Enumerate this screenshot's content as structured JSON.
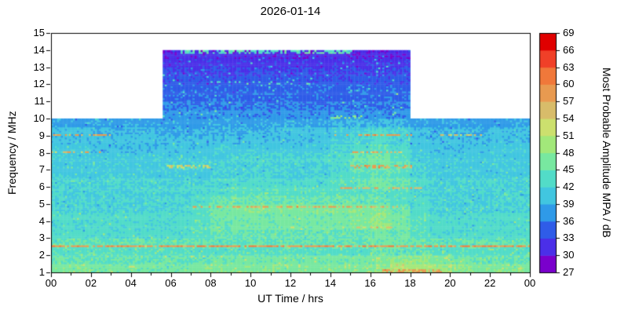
{
  "chart_data": {
    "type": "heatmap",
    "title": "2026-01-14",
    "xlabel": "UT Time / hrs",
    "ylabel": "Frequency / MHz",
    "colorbar_label": "Most Probable Amplitude MPA / dB",
    "x_range": [
      0,
      24
    ],
    "y_range": [
      1,
      15
    ],
    "x_tick_positions": [
      0,
      2,
      4,
      6,
      8,
      10,
      12,
      14,
      16,
      18,
      20,
      22,
      24
    ],
    "x_tick_labels": [
      "00",
      "02",
      "04",
      "06",
      "08",
      "10",
      "12",
      "14",
      "16",
      "18",
      "20",
      "22",
      "00"
    ],
    "y_tick_positions": [
      1,
      2,
      3,
      4,
      5,
      6,
      7,
      8,
      9,
      10,
      11,
      12,
      13,
      14,
      15
    ],
    "y_tick_labels": [
      "1",
      "2",
      "3",
      "4",
      "5",
      "6",
      "7",
      "8",
      "9",
      "10",
      "11",
      "12",
      "13",
      "14",
      "15"
    ],
    "colorbar_range": [
      27,
      69
    ],
    "colorbar_ticks": [
      27,
      30,
      33,
      36,
      39,
      42,
      45,
      48,
      51,
      54,
      57,
      60,
      63,
      66,
      69
    ],
    "colormap_bin_db": 3,
    "colormap": [
      "#7a00cc",
      "#4b2fe8",
      "#2f5ce8",
      "#2f9ae8",
      "#41c6e0",
      "#52dcc8",
      "#78e8a0",
      "#a2e87a",
      "#cce06e",
      "#d8bc6a",
      "#e89a50",
      "#f0783a",
      "#f04028",
      "#e00000"
    ],
    "no_data_color": "#ffffff",
    "data_coverage": {
      "full_day_max_freq": 10,
      "daytime_block": {
        "t_start": 5.6,
        "t_end": 18.0,
        "f_min": 10,
        "f_max": 14
      }
    },
    "base_grid": {
      "unit": "dB",
      "freq_start": 1.0,
      "freq_step": 0.5,
      "time_step": 1,
      "rows": [
        [
          47,
          47,
          46,
          46,
          46,
          46,
          46,
          47,
          47,
          47,
          47,
          47,
          47,
          47,
          47,
          47,
          48,
          50,
          50,
          49,
          48,
          47,
          47,
          47
        ],
        [
          45,
          45,
          45,
          45,
          45,
          45,
          45,
          45,
          46,
          46,
          46,
          46,
          46,
          46,
          46,
          46,
          47,
          48,
          48,
          47,
          46,
          45,
          45,
          45
        ],
        [
          44,
          44,
          44,
          44,
          44,
          44,
          44,
          44,
          44,
          44,
          44,
          44,
          44,
          44,
          44,
          44,
          45,
          45,
          45,
          44,
          44,
          44,
          44,
          44
        ],
        [
          45,
          45,
          45,
          45,
          45,
          45,
          45,
          45,
          45,
          45,
          45,
          45,
          45,
          45,
          45,
          45,
          46,
          46,
          45,
          45,
          45,
          45,
          45,
          45
        ],
        [
          43,
          43,
          43,
          43,
          43,
          43,
          43,
          44,
          45,
          45,
          45,
          45,
          45,
          45,
          45,
          45,
          46,
          45,
          44,
          43,
          43,
          43,
          43,
          43
        ],
        [
          43,
          43,
          43,
          43,
          43,
          43,
          43,
          44,
          45,
          46,
          46,
          46,
          46,
          46,
          46,
          47,
          48,
          46,
          44,
          43,
          43,
          43,
          43,
          43
        ],
        [
          43,
          43,
          43,
          43,
          43,
          43,
          43,
          44,
          46,
          46,
          46,
          46,
          46,
          46,
          46,
          47,
          48,
          46,
          44,
          43,
          43,
          43,
          43,
          43
        ],
        [
          42,
          42,
          42,
          42,
          42,
          42,
          42,
          44,
          46,
          47,
          47,
          47,
          47,
          47,
          47,
          47,
          47,
          45,
          43,
          42,
          42,
          42,
          42,
          42
        ],
        [
          42,
          42,
          42,
          42,
          42,
          42,
          42,
          43,
          45,
          45,
          45,
          45,
          45,
          45,
          45,
          45,
          45,
          44,
          43,
          42,
          42,
          42,
          42,
          42
        ],
        [
          42,
          42,
          42,
          42,
          42,
          42,
          42,
          42,
          43,
          44,
          44,
          44,
          44,
          44,
          44,
          44,
          45,
          44,
          42,
          42,
          42,
          42,
          42,
          42
        ],
        [
          42,
          42,
          42,
          42,
          42,
          42,
          42,
          42,
          43,
          43,
          43,
          43,
          43,
          43,
          44,
          45,
          46,
          45,
          43,
          42,
          42,
          42,
          42,
          42
        ],
        [
          41,
          41,
          41,
          41,
          41,
          41,
          41,
          41,
          42,
          42,
          42,
          42,
          42,
          42,
          43,
          44,
          45,
          44,
          42,
          41,
          41,
          41,
          41,
          41
        ],
        [
          41,
          41,
          41,
          41,
          41,
          41,
          42,
          42,
          42,
          42,
          42,
          42,
          42,
          42,
          43,
          45,
          46,
          45,
          42,
          41,
          41,
          41,
          41,
          41
        ],
        [
          41,
          41,
          41,
          41,
          41,
          41,
          41,
          41,
          41,
          42,
          42,
          42,
          42,
          42,
          43,
          45,
          46,
          44,
          42,
          41,
          41,
          41,
          41,
          41
        ],
        [
          41,
          41,
          40,
          40,
          40,
          40,
          40,
          40,
          41,
          41,
          41,
          41,
          41,
          41,
          42,
          43,
          44,
          43,
          41,
          40,
          40,
          40,
          41,
          41
        ],
        [
          40,
          40,
          40,
          40,
          40,
          40,
          40,
          40,
          40,
          40,
          40,
          40,
          40,
          40,
          41,
          42,
          43,
          42,
          40,
          40,
          40,
          40,
          40,
          40
        ],
        [
          40,
          40,
          39,
          39,
          39,
          39,
          39,
          39,
          39,
          39,
          39,
          40,
          40,
          40,
          41,
          42,
          43,
          42,
          40,
          39,
          39,
          39,
          40,
          40
        ],
        [
          38,
          38,
          38,
          38,
          38,
          38,
          38,
          38,
          38,
          38,
          38,
          38,
          38,
          38,
          39,
          39,
          39,
          39,
          38,
          38,
          38,
          38,
          38,
          38
        ],
        [
          37,
          37,
          37,
          37,
          37,
          37,
          37,
          37,
          37,
          37,
          37,
          37,
          37,
          37,
          37,
          37,
          37,
          37,
          37,
          37,
          37,
          37,
          37,
          37
        ],
        [
          36,
          36,
          36,
          36,
          36,
          36,
          36,
          36,
          36,
          36,
          36,
          36,
          36,
          36,
          36,
          36,
          36,
          36,
          36,
          36,
          36,
          36,
          36,
          36
        ],
        [
          35,
          35,
          35,
          35,
          35,
          35,
          35,
          35,
          35,
          35,
          35,
          35,
          35,
          35,
          35,
          35,
          35,
          35,
          35,
          35,
          35,
          35,
          35,
          35
        ],
        [
          35,
          35,
          35,
          35,
          35,
          35,
          35,
          35,
          35,
          35,
          35,
          35,
          35,
          35,
          35,
          35,
          35,
          35,
          35,
          35,
          35,
          35,
          35,
          35
        ],
        [
          34,
          34,
          34,
          34,
          34,
          34,
          34,
          34,
          34,
          34,
          34,
          34,
          34,
          34,
          34,
          34,
          34,
          34,
          34,
          34,
          34,
          34,
          34,
          34
        ],
        [
          33,
          33,
          33,
          33,
          33,
          33,
          33,
          33,
          33,
          33,
          33,
          33,
          33,
          33,
          33,
          33,
          33,
          33,
          33,
          33,
          33,
          33,
          33,
          33
        ],
        [
          32,
          32,
          32,
          32,
          32,
          32,
          32,
          32,
          32,
          32,
          32,
          32,
          32,
          32,
          32,
          32,
          32,
          32,
          32,
          32,
          32,
          32,
          32,
          32
        ],
        [
          31,
          31,
          31,
          31,
          31,
          31,
          31,
          31,
          31,
          31,
          31,
          31,
          31,
          31,
          31,
          31,
          31,
          31,
          31,
          31,
          31,
          31,
          31,
          31
        ]
      ]
    },
    "streaks": [
      {
        "freq": 2.55,
        "t0": 0,
        "t1": 24,
        "db": 59,
        "halfw": 0.08,
        "density": 0.85
      },
      {
        "freq": 1.15,
        "t0": 16.5,
        "t1": 19.5,
        "db": 58,
        "halfw": 0.1,
        "density": 0.6
      },
      {
        "freq": 4.85,
        "t0": 7,
        "t1": 17.5,
        "db": 58,
        "halfw": 0.08,
        "density": 0.6
      },
      {
        "freq": 3.65,
        "t0": 14.5,
        "t1": 17,
        "db": 55,
        "halfw": 0.08,
        "density": 0.5
      },
      {
        "freq": 5.95,
        "t0": 14.5,
        "t1": 18.5,
        "db": 57,
        "halfw": 0.08,
        "density": 0.6
      },
      {
        "freq": 7.2,
        "t0": 15,
        "t1": 18,
        "db": 58,
        "halfw": 0.08,
        "density": 0.65
      },
      {
        "freq": 7.2,
        "t0": 5.8,
        "t1": 8,
        "db": 53,
        "halfw": 0.07,
        "density": 0.5
      },
      {
        "freq": 8.05,
        "t0": 0,
        "t1": 2.5,
        "db": 56,
        "halfw": 0.07,
        "density": 0.5
      },
      {
        "freq": 8.05,
        "t0": 15,
        "t1": 17.5,
        "db": 56,
        "halfw": 0.07,
        "density": 0.5
      },
      {
        "freq": 9.05,
        "t0": 0,
        "t1": 3,
        "db": 57,
        "halfw": 0.08,
        "density": 0.55
      },
      {
        "freq": 9.05,
        "t0": 14,
        "t1": 18,
        "db": 58,
        "halfw": 0.08,
        "density": 0.6
      },
      {
        "freq": 9.05,
        "t0": 19.5,
        "t1": 21.5,
        "db": 55,
        "halfw": 0.07,
        "density": 0.45
      },
      {
        "freq": 13.9,
        "t0": 6.5,
        "t1": 15,
        "db": 44,
        "halfw": 0.08,
        "density": 0.55
      },
      {
        "freq": 12.1,
        "t0": 8,
        "t1": 14,
        "db": 45,
        "halfw": 0.07,
        "density": 0.15
      },
      {
        "freq": 10.1,
        "t0": 14,
        "t1": 15.5,
        "db": 48,
        "halfw": 0.1,
        "density": 0.5
      }
    ]
  }
}
